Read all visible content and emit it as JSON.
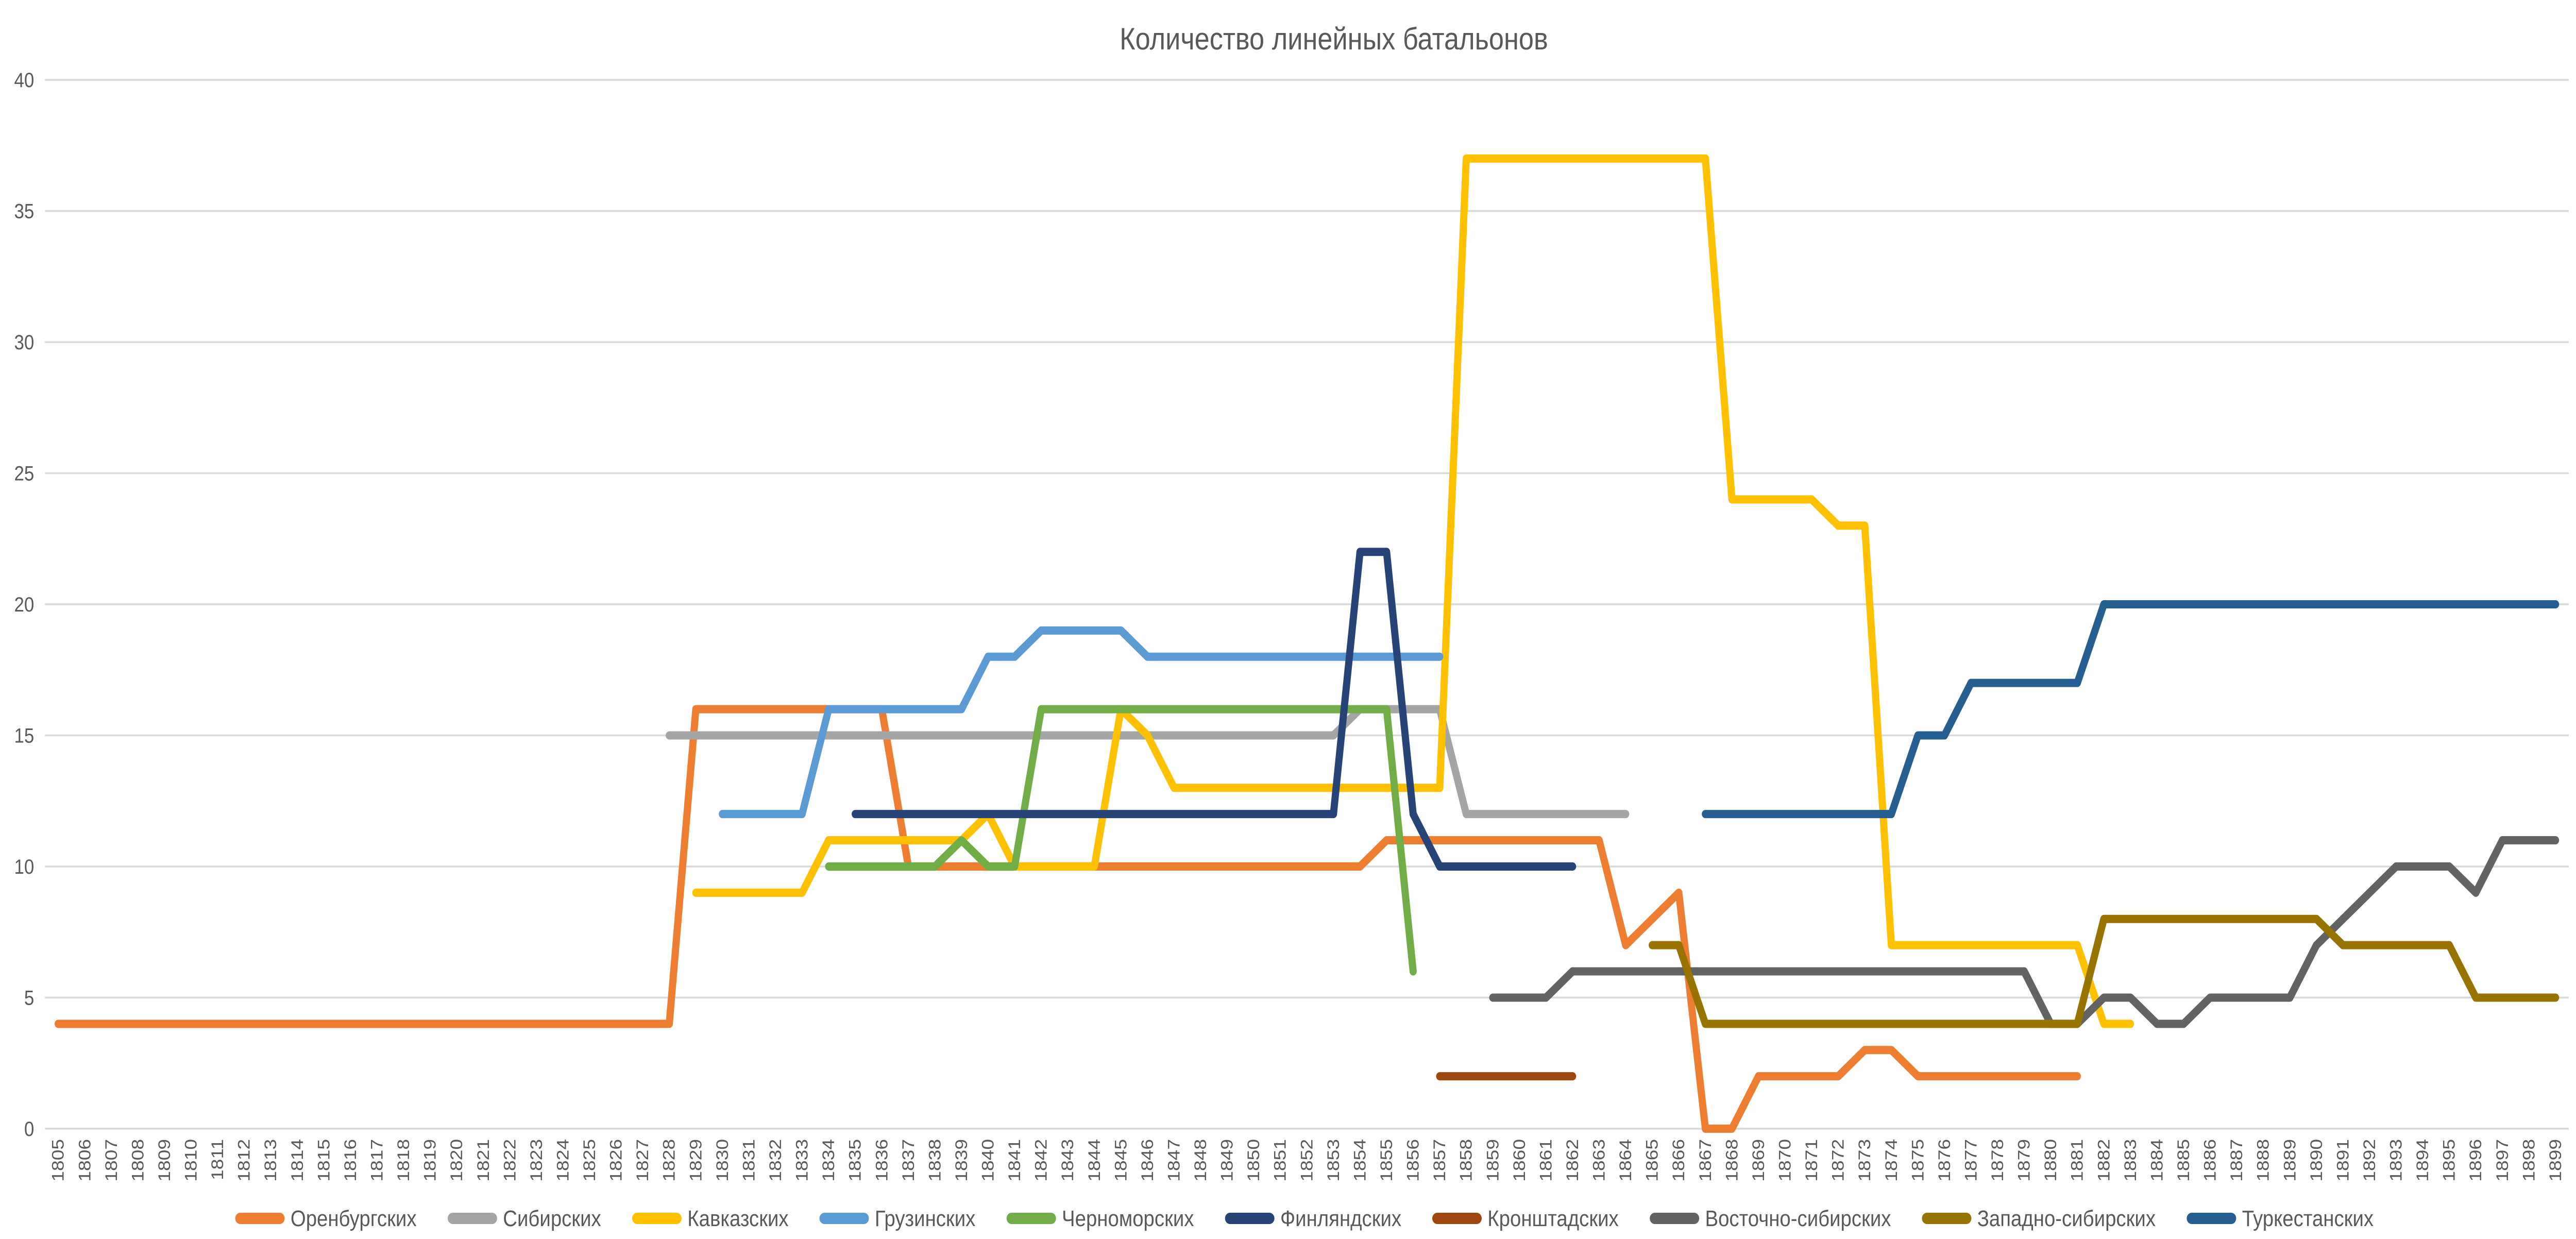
{
  "chart_data": {
    "type": "line",
    "title": "Количество линейных батальонов",
    "xlabel": "",
    "ylabel": "",
    "x_tick_labels": [
      1805,
      1806,
      1807,
      1808,
      1809,
      1810,
      1811,
      1812,
      1813,
      1814,
      1815,
      1816,
      1817,
      1818,
      1819,
      1820,
      1821,
      1822,
      1823,
      1824,
      1825,
      1826,
      1827,
      1828,
      1829,
      1830,
      1831,
      1832,
      1833,
      1834,
      1835,
      1836,
      1837,
      1838,
      1839,
      1840,
      1841,
      1842,
      1843,
      1844,
      1845,
      1846,
      1847,
      1848,
      1849,
      1850,
      1851,
      1852,
      1853,
      1854,
      1855,
      1856,
      1857,
      1858,
      1859,
      1860,
      1861,
      1862,
      1863,
      1864,
      1865,
      1866,
      1867,
      1868,
      1869,
      1870,
      1871,
      1872,
      1873,
      1874,
      1875,
      1876,
      1877,
      1878,
      1879,
      1880,
      1881,
      1882,
      1883,
      1884,
      1885,
      1886,
      1887,
      1888,
      1889,
      1890,
      1891,
      1892,
      1893,
      1894,
      1895,
      1896,
      1897,
      1898,
      1899
    ],
    "ylim": [
      0,
      40
    ],
    "y_ticks": [
      0,
      5,
      10,
      15,
      20,
      25,
      30,
      35,
      40
    ],
    "grid": "horizontal",
    "legend_position": "bottom",
    "text_color": "#595959",
    "grid_color": "#D9D9D9",
    "background_color": "#FFFFFF",
    "series": [
      {
        "name": "Оренбургских",
        "color": "#ED7D31",
        "runs": [
          [
            1805,
            1828,
            4
          ],
          [
            1829,
            1836,
            16
          ],
          [
            1837,
            1854,
            10
          ],
          [
            1855,
            1863,
            11
          ],
          [
            1864,
            1864,
            7
          ],
          [
            1865,
            1865,
            8
          ],
          [
            1866,
            1866,
            9
          ],
          [
            1867,
            1868,
            0
          ],
          [
            1869,
            1872,
            2
          ],
          [
            1873,
            1874,
            3
          ],
          [
            1875,
            1881,
            2
          ]
        ]
      },
      {
        "name": "Сибирских",
        "color": "#A5A5A5",
        "runs": [
          [
            1828,
            1853,
            15
          ],
          [
            1854,
            1857,
            16
          ],
          [
            1858,
            1864,
            12
          ]
        ]
      },
      {
        "name": "Кавказских",
        "color": "#FFC000",
        "runs": [
          [
            1829,
            1833,
            9
          ],
          [
            1834,
            1839,
            11
          ],
          [
            1840,
            1840,
            12
          ],
          [
            1841,
            1844,
            10
          ],
          [
            1845,
            1845,
            16
          ],
          [
            1846,
            1846,
            15
          ],
          [
            1847,
            1857,
            13
          ],
          [
            1858,
            1867,
            37
          ],
          [
            1868,
            1871,
            24
          ],
          [
            1872,
            1873,
            23
          ],
          [
            1874,
            1881,
            7
          ],
          [
            1882,
            1883,
            4
          ]
        ]
      },
      {
        "name": "Грузинских",
        "color": "#5B9BD5",
        "runs": [
          [
            1830,
            1833,
            12
          ],
          [
            1834,
            1839,
            16
          ],
          [
            1840,
            1841,
            18
          ],
          [
            1842,
            1845,
            19
          ],
          [
            1846,
            1857,
            18
          ]
        ]
      },
      {
        "name": "Черноморских",
        "color": "#70AD47",
        "runs": [
          [
            1834,
            1838,
            10
          ],
          [
            1839,
            1839,
            11
          ],
          [
            1840,
            1841,
            10
          ],
          [
            1842,
            1855,
            16
          ],
          [
            1856,
            1856,
            6
          ]
        ]
      },
      {
        "name": "Финляндских",
        "color": "#264478",
        "runs": [
          [
            1835,
            1853,
            12
          ],
          [
            1854,
            1855,
            22
          ],
          [
            1856,
            1856,
            12
          ],
          [
            1857,
            1862,
            10
          ]
        ]
      },
      {
        "name": "Кронштадских",
        "color": "#9E480E",
        "runs": [
          [
            1857,
            1862,
            2
          ]
        ]
      },
      {
        "name": "Восточно-сибирских",
        "color": "#636363",
        "runs": [
          [
            1859,
            1861,
            5
          ],
          [
            1862,
            1879,
            6
          ],
          [
            1880,
            1881,
            4
          ],
          [
            1882,
            1883,
            5
          ],
          [
            1884,
            1885,
            4
          ],
          [
            1886,
            1889,
            5
          ],
          [
            1890,
            1890,
            7
          ],
          [
            1891,
            1891,
            8
          ],
          [
            1892,
            1892,
            9
          ],
          [
            1893,
            1895,
            10
          ],
          [
            1896,
            1896,
            9
          ],
          [
            1897,
            1899,
            11
          ]
        ]
      },
      {
        "name": "Западно-сибирских",
        "color": "#997300",
        "runs": [
          [
            1865,
            1866,
            7
          ],
          [
            1867,
            1881,
            4
          ],
          [
            1882,
            1890,
            8
          ],
          [
            1891,
            1895,
            7
          ],
          [
            1896,
            1899,
            5
          ]
        ]
      },
      {
        "name": "Туркестанских",
        "color": "#255E91",
        "runs": [
          [
            1867,
            1874,
            12
          ],
          [
            1875,
            1876,
            15
          ],
          [
            1877,
            1881,
            17
          ],
          [
            1882,
            1899,
            20
          ]
        ]
      }
    ]
  }
}
